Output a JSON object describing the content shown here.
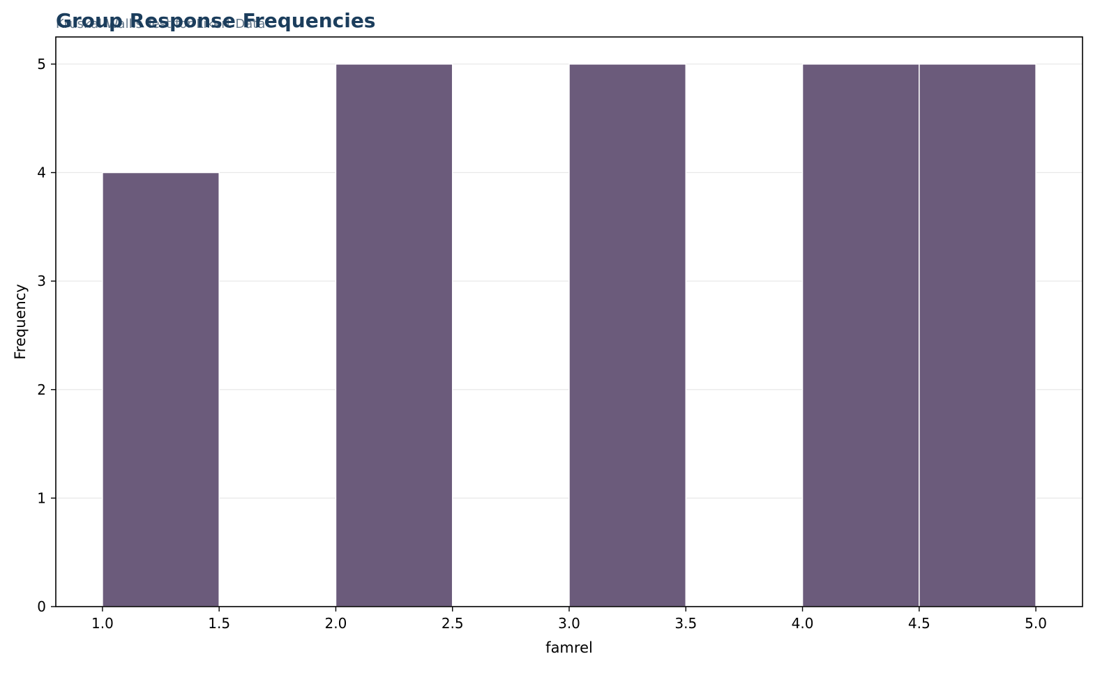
{
  "chart_data": {
    "type": "bar",
    "title": "Group Response Frequencies",
    "subtitle": "Kruskal-Wallis Test for Likert Data",
    "xlabel": "famrel",
    "ylabel": "Frequency",
    "bins": [
      {
        "x0": 1.0,
        "x1": 1.5,
        "count": 4
      },
      {
        "x0": 1.5,
        "x1": 2.0,
        "count": 0
      },
      {
        "x0": 2.0,
        "x1": 2.5,
        "count": 5
      },
      {
        "x0": 2.5,
        "x1": 3.0,
        "count": 0
      },
      {
        "x0": 3.0,
        "x1": 3.5,
        "count": 5
      },
      {
        "x0": 3.5,
        "x1": 4.0,
        "count": 0
      },
      {
        "x0": 4.0,
        "x1": 4.5,
        "count": 5
      },
      {
        "x0": 4.5,
        "x1": 5.0,
        "count": 5
      }
    ],
    "xlim": [
      0.8,
      5.2
    ],
    "ylim": [
      0,
      5.25
    ],
    "xticks": [
      "1.0",
      "1.5",
      "2.0",
      "2.5",
      "3.0",
      "3.5",
      "4.0",
      "4.5",
      "5.0"
    ],
    "yticks": [
      "0",
      "1",
      "2",
      "3",
      "4",
      "5"
    ],
    "grid": "horizontal",
    "legend": "none"
  },
  "colors": {
    "bar": "#6b5b7b",
    "bar_edge": "#ffffff",
    "title": "#1b3d5c",
    "subtitle": "#3d566e",
    "grid": "#e8e8e8",
    "axis": "#000000"
  }
}
